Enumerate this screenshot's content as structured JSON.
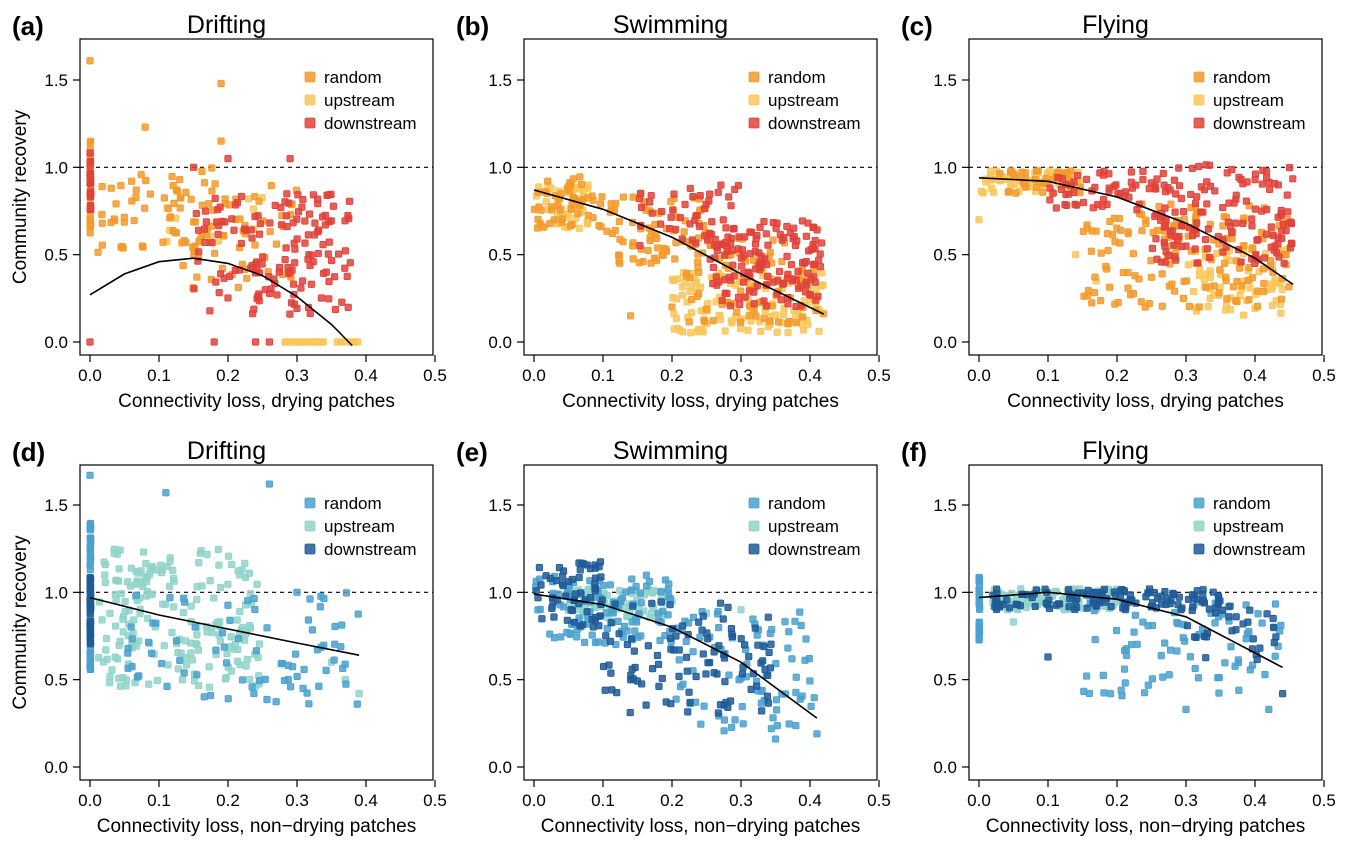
{
  "colors": {
    "random_warm": "#F39A2C",
    "upstream_warm": "#F9C65A",
    "downstream_warm": "#E0423A",
    "random_cool": "#4AA1CF",
    "upstream_cool": "#8FD3C9",
    "downstream_cool": "#1F5B98",
    "fit_line": "#000000",
    "reference_line": "#000000"
  },
  "axes": {
    "y_label": "Community recovery",
    "x_label_top": "Connectivity loss, drying patches",
    "x_label_bottom": "Connectivity loss, non−drying patches",
    "x_ticks": [
      "0.0",
      "0.1",
      "0.2",
      "0.3",
      "0.4",
      "0.5"
    ],
    "y_ticks": [
      "0.0",
      "0.5",
      "1.0",
      "1.5"
    ]
  },
  "legend": {
    "items": [
      "random",
      "upstream",
      "downstream"
    ]
  },
  "chart_data": [
    {
      "id": "a",
      "letter": "(a)",
      "title": "Drifting",
      "type": "scatter",
      "row": 0,
      "col": 0,
      "palette": "warm",
      "xlim": [
        0,
        0.5
      ],
      "ylim": [
        0,
        1.65
      ],
      "reference_y": 1.0,
      "legend_position": "top-right",
      "fit_curve": {
        "x": [
          0,
          0.05,
          0.1,
          0.15,
          0.2,
          0.25,
          0.3,
          0.35,
          0.38
        ],
        "y": [
          0.27,
          0.39,
          0.46,
          0.48,
          0.45,
          0.38,
          0.26,
          0.1,
          -0.02
        ]
      },
      "series": [
        {
          "name": "random",
          "clusters": [
            {
              "x": [
                0,
                0.001
              ],
              "y": [
                0.62,
                1.15
              ],
              "n": 25
            },
            {
              "x": [
                0.01,
                0.2
              ],
              "y": [
                0.5,
                1.0
              ],
              "n": 60
            },
            {
              "x": [
                0.13,
                0.3
              ],
              "y": [
                0.3,
                0.9
              ],
              "n": 50
            }
          ],
          "points": [
            [
              0,
              1.61
            ],
            [
              0.19,
              1.48
            ],
            [
              0.08,
              1.23
            ],
            [
              0.19,
              1.15
            ],
            [
              0.13,
              0.93
            ]
          ]
        },
        {
          "name": "upstream",
          "clusters": [
            {
              "x": [
                0.0,
                0.001
              ],
              "y": [
                0.7,
                1.08
              ],
              "n": 12
            },
            {
              "x": [
                0.28,
                0.4
              ],
              "y": [
                0.0,
                0.0
              ],
              "n": 28
            },
            {
              "x": [
                0.1,
                0.25
              ],
              "y": [
                0.55,
                0.85
              ],
              "n": 12
            }
          ],
          "points": []
        },
        {
          "name": "downstream",
          "clusters": [
            {
              "x": [
                0,
                0.001
              ],
              "y": [
                0.75,
                1.1
              ],
              "n": 30
            },
            {
              "x": [
                0.15,
                0.38
              ],
              "y": [
                0.15,
                0.85
              ],
              "n": 150
            }
          ],
          "points": [
            [
              0,
              0
            ],
            [
              0.18,
              0
            ],
            [
              0.24,
              0
            ],
            [
              0.26,
              0
            ],
            [
              0.29,
              1.05
            ],
            [
              0.2,
              1.05
            ],
            [
              0.15,
              1.0
            ]
          ]
        }
      ]
    },
    {
      "id": "b",
      "letter": "(b)",
      "title": "Swimming",
      "type": "scatter",
      "row": 0,
      "col": 1,
      "palette": "warm",
      "xlim": [
        0,
        0.5
      ],
      "ylim": [
        0,
        1.65
      ],
      "reference_y": 1.0,
      "legend_position": "top-right",
      "fit_curve": {
        "x": [
          0,
          0.1,
          0.2,
          0.3,
          0.42
        ],
        "y": [
          0.87,
          0.76,
          0.6,
          0.39,
          0.16
        ]
      },
      "series": [
        {
          "name": "random",
          "clusters": [
            {
              "x": [
                0,
                0.1
              ],
              "y": [
                0.65,
                0.95
              ],
              "n": 50
            },
            {
              "x": [
                0.1,
                0.25
              ],
              "y": [
                0.45,
                0.85
              ],
              "n": 70
            },
            {
              "x": [
                0.22,
                0.42
              ],
              "y": [
                0.1,
                0.6
              ],
              "n": 80
            }
          ],
          "points": [
            [
              0.14,
              0.15
            ],
            [
              0.2,
              0.2
            ]
          ]
        },
        {
          "name": "upstream",
          "clusters": [
            {
              "x": [
                0,
                0.08
              ],
              "y": [
                0.65,
                0.9
              ],
              "n": 45
            },
            {
              "x": [
                0.2,
                0.42
              ],
              "y": [
                0.05,
                0.4
              ],
              "n": 120
            }
          ],
          "points": []
        },
        {
          "name": "downstream",
          "clusters": [
            {
              "x": [
                0.15,
                0.3
              ],
              "y": [
                0.5,
                0.9
              ],
              "n": 50
            },
            {
              "x": [
                0.25,
                0.42
              ],
              "y": [
                0.2,
                0.7
              ],
              "n": 140
            }
          ],
          "points": []
        }
      ]
    },
    {
      "id": "c",
      "letter": "(c)",
      "title": "Flying",
      "type": "scatter",
      "row": 0,
      "col": 2,
      "palette": "warm",
      "xlim": [
        0,
        0.5
      ],
      "ylim": [
        0,
        1.65
      ],
      "reference_y": 1.0,
      "legend_position": "top-right",
      "fit_curve": {
        "x": [
          0,
          0.1,
          0.2,
          0.3,
          0.4,
          0.455
        ],
        "y": [
          0.94,
          0.92,
          0.83,
          0.68,
          0.48,
          0.33
        ]
      },
      "series": [
        {
          "name": "random",
          "clusters": [
            {
              "x": [
                0.02,
                0.15
              ],
              "y": [
                0.85,
                0.98
              ],
              "n": 40
            },
            {
              "x": [
                0.15,
                0.45
              ],
              "y": [
                0.2,
                0.8
              ],
              "n": 150
            }
          ],
          "points": []
        },
        {
          "name": "upstream",
          "clusters": [
            {
              "x": [
                0,
                0.15
              ],
              "y": [
                0.85,
                0.98
              ],
              "n": 60
            },
            {
              "x": [
                0.3,
                0.45
              ],
              "y": [
                0.15,
                0.55
              ],
              "n": 70
            }
          ],
          "points": [
            [
              0,
              0.7
            ],
            [
              0.14,
              0.5
            ],
            [
              0.17,
              0.35
            ]
          ]
        },
        {
          "name": "downstream",
          "clusters": [
            {
              "x": [
                0.1,
                0.25
              ],
              "y": [
                0.75,
                0.98
              ],
              "n": 50
            },
            {
              "x": [
                0.25,
                0.455
              ],
              "y": [
                0.45,
                1.02
              ],
              "n": 150
            }
          ],
          "points": []
        }
      ]
    },
    {
      "id": "d",
      "letter": "(d)",
      "title": "Drifting",
      "type": "scatter",
      "row": 1,
      "col": 0,
      "palette": "cool",
      "xlim": [
        0,
        0.5
      ],
      "ylim": [
        0,
        1.65
      ],
      "reference_y": 1.0,
      "legend_position": "top-right",
      "fit_curve": {
        "x": [
          0,
          0.1,
          0.2,
          0.3,
          0.39
        ],
        "y": [
          0.97,
          0.87,
          0.79,
          0.71,
          0.64
        ]
      },
      "series": [
        {
          "name": "random",
          "clusters": [
            {
              "x": [
                0,
                0.001
              ],
              "y": [
                0.55,
                1.42
              ],
              "n": 80
            },
            {
              "x": [
                0.05,
                0.39
              ],
              "y": [
                0.35,
                1.0
              ],
              "n": 80
            }
          ],
          "points": [
            [
              0,
              1.67
            ],
            [
              0.11,
              1.57
            ],
            [
              0.26,
              1.62
            ],
            [
              0.3,
              1.0
            ]
          ]
        },
        {
          "name": "upstream",
          "clusters": [
            {
              "x": [
                0.01,
                0.25
              ],
              "y": [
                0.45,
                1.25
              ],
              "n": 200
            }
          ],
          "points": [
            [
              0.39,
              0.42
            ],
            [
              0.37,
              0.5
            ],
            [
              0.35,
              0.6
            ]
          ]
        },
        {
          "name": "downstream",
          "clusters": [
            {
              "x": [
                0,
                0.001
              ],
              "y": [
                0.7,
                1.1
              ],
              "n": 40
            }
          ],
          "points": []
        }
      ]
    },
    {
      "id": "e",
      "letter": "(e)",
      "title": "Swimming",
      "type": "scatter",
      "row": 1,
      "col": 1,
      "palette": "cool",
      "xlim": [
        0,
        0.5
      ],
      "ylim": [
        0,
        1.65
      ],
      "reference_y": 1.0,
      "legend_position": "top-right",
      "fit_curve": {
        "x": [
          0,
          0.1,
          0.2,
          0.3,
          0.41
        ],
        "y": [
          0.99,
          0.93,
          0.8,
          0.6,
          0.28
        ]
      },
      "series": [
        {
          "name": "random",
          "clusters": [
            {
              "x": [
                0,
                0.2
              ],
              "y": [
                0.7,
                1.1
              ],
              "n": 100
            },
            {
              "x": [
                0.2,
                0.41
              ],
              "y": [
                0.2,
                0.9
              ],
              "n": 80
            }
          ],
          "points": [
            [
              0.35,
              0.16
            ],
            [
              0.41,
              0.19
            ]
          ]
        },
        {
          "name": "upstream",
          "clusters": [
            {
              "x": [
                0.05,
                0.2
              ],
              "y": [
                0.85,
                1.02
              ],
              "n": 80
            }
          ],
          "points": [
            [
              0.2,
              0.95
            ],
            [
              0.25,
              0.88
            ],
            [
              0.3,
              0.9
            ]
          ]
        },
        {
          "name": "downstream",
          "clusters": [
            {
              "x": [
                0,
                0.1
              ],
              "y": [
                0.8,
                1.18
              ],
              "n": 60
            },
            {
              "x": [
                0.1,
                0.35
              ],
              "y": [
                0.3,
                0.95
              ],
              "n": 100
            }
          ],
          "points": []
        }
      ]
    },
    {
      "id": "f",
      "letter": "(f)",
      "title": "Flying",
      "type": "scatter",
      "row": 1,
      "col": 2,
      "palette": "cool",
      "xlim": [
        0,
        0.5
      ],
      "ylim": [
        0,
        1.65
      ],
      "reference_y": 1.0,
      "legend_position": "top-right",
      "fit_curve": {
        "x": [
          0,
          0.1,
          0.2,
          0.3,
          0.44
        ],
        "y": [
          0.97,
          1.0,
          0.96,
          0.86,
          0.57
        ]
      },
      "series": [
        {
          "name": "random",
          "clusters": [
            {
              "x": [
                0,
                0.001
              ],
              "y": [
                0.72,
                1.1
              ],
              "n": 25
            },
            {
              "x": [
                0.15,
                0.44
              ],
              "y": [
                0.4,
                0.95
              ],
              "n": 80
            }
          ],
          "points": [
            [
              0.42,
              0.33
            ],
            [
              0.3,
              0.33
            ]
          ]
        },
        {
          "name": "upstream",
          "clusters": [
            {
              "x": [
                0.02,
                0.2
              ],
              "y": [
                0.9,
                1.02
              ],
              "n": 100
            }
          ],
          "points": [
            [
              0.05,
              0.83
            ]
          ]
        },
        {
          "name": "downstream",
          "clusters": [
            {
              "x": [
                0.02,
                0.35
              ],
              "y": [
                0.9,
                1.02
              ],
              "n": 120
            },
            {
              "x": [
                0.3,
                0.44
              ],
              "y": [
                0.6,
                0.95
              ],
              "n": 30
            }
          ],
          "points": [
            [
              0.1,
              0.63
            ],
            [
              0.44,
              0.42
            ]
          ]
        }
      ]
    }
  ]
}
